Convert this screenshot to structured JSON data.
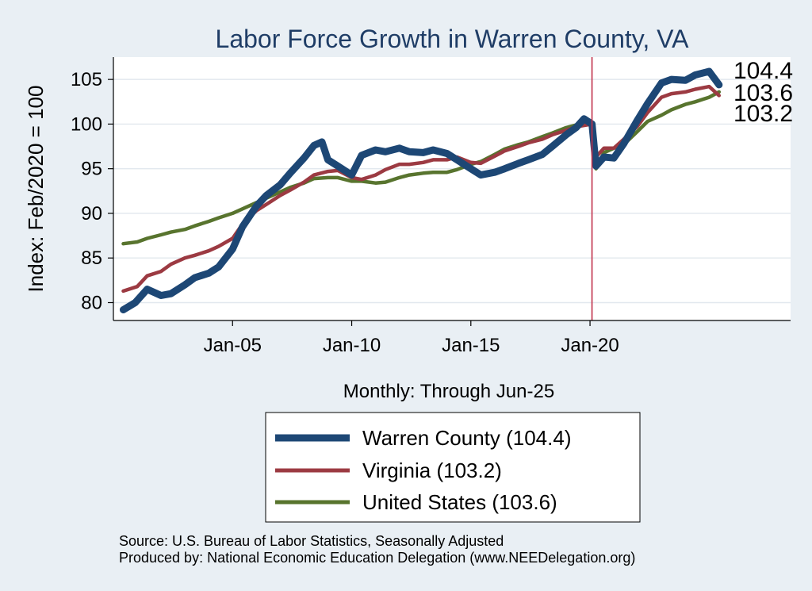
{
  "chart_data": {
    "type": "line",
    "title": "Labor Force Growth in Warren  County, VA",
    "ylabel": "Index: Feb/2020 = 100",
    "xlabel": "Monthly: Through Jun-25",
    "ylim": [
      78,
      107.5
    ],
    "xlim": [
      "2000-01",
      "2028-06"
    ],
    "y_ticks": [
      80,
      85,
      90,
      95,
      100,
      105
    ],
    "x_ticks": [
      {
        "date": "2005-01",
        "label": "Jan-05"
      },
      {
        "date": "2010-01",
        "label": "Jan-10"
      },
      {
        "date": "2015-01",
        "label": "Jan-15"
      },
      {
        "date": "2020-01",
        "label": "Jan-20"
      }
    ],
    "grid": "horizontal",
    "reference_line": {
      "date": "2020-02",
      "color": "#c0304a"
    },
    "background": "#ffffff",
    "series": [
      {
        "name": "Warren  County",
        "color": "#1d4775",
        "points": [
          [
            "2000-06",
            79.2
          ],
          [
            "2000-12",
            80.0
          ],
          [
            "2001-06",
            81.5
          ],
          [
            "2002-01",
            80.8
          ],
          [
            "2002-06",
            81.0
          ],
          [
            "2003-01",
            82.0
          ],
          [
            "2003-06",
            82.8
          ],
          [
            "2004-01",
            83.3
          ],
          [
            "2004-06",
            84.0
          ],
          [
            "2005-01",
            86.0
          ],
          [
            "2005-06",
            88.5
          ],
          [
            "2006-01",
            90.8
          ],
          [
            "2006-06",
            92.0
          ],
          [
            "2007-01",
            93.2
          ],
          [
            "2007-06",
            94.5
          ],
          [
            "2008-01",
            96.2
          ],
          [
            "2008-06",
            97.6
          ],
          [
            "2008-10",
            98.0
          ],
          [
            "2009-01",
            96.0
          ],
          [
            "2009-06",
            95.3
          ],
          [
            "2010-01",
            94.3
          ],
          [
            "2010-06",
            96.5
          ],
          [
            "2011-01",
            97.1
          ],
          [
            "2011-06",
            96.9
          ],
          [
            "2012-01",
            97.3
          ],
          [
            "2012-06",
            96.9
          ],
          [
            "2013-01",
            96.8
          ],
          [
            "2013-06",
            97.1
          ],
          [
            "2014-01",
            96.7
          ],
          [
            "2014-06",
            96.0
          ],
          [
            "2015-01",
            95.0
          ],
          [
            "2015-06",
            94.3
          ],
          [
            "2016-01",
            94.6
          ],
          [
            "2016-06",
            95.0
          ],
          [
            "2017-01",
            95.6
          ],
          [
            "2017-06",
            96.0
          ],
          [
            "2018-01",
            96.6
          ],
          [
            "2018-06",
            97.5
          ],
          [
            "2019-01",
            98.8
          ],
          [
            "2019-06",
            99.6
          ],
          [
            "2019-10",
            100.6
          ],
          [
            "2020-02",
            100.0
          ],
          [
            "2020-04",
            95.3
          ],
          [
            "2020-08",
            96.3
          ],
          [
            "2021-01",
            96.2
          ],
          [
            "2021-06",
            97.8
          ],
          [
            "2022-01",
            100.5
          ],
          [
            "2022-06",
            102.3
          ],
          [
            "2023-01",
            104.6
          ],
          [
            "2023-06",
            105.0
          ],
          [
            "2024-01",
            104.9
          ],
          [
            "2024-06",
            105.5
          ],
          [
            "2025-01",
            105.9
          ],
          [
            "2025-06",
            104.4
          ]
        ]
      },
      {
        "name": "Virginia",
        "color": "#9c3a42",
        "points": [
          [
            "2000-06",
            81.3
          ],
          [
            "2001-01",
            81.8
          ],
          [
            "2001-06",
            83.0
          ],
          [
            "2002-01",
            83.5
          ],
          [
            "2002-06",
            84.3
          ],
          [
            "2003-01",
            85.0
          ],
          [
            "2003-06",
            85.3
          ],
          [
            "2004-01",
            85.8
          ],
          [
            "2004-06",
            86.3
          ],
          [
            "2005-01",
            87.2
          ],
          [
            "2005-06",
            88.8
          ],
          [
            "2006-01",
            90.3
          ],
          [
            "2006-06",
            91.0
          ],
          [
            "2007-01",
            92.0
          ],
          [
            "2007-06",
            92.6
          ],
          [
            "2008-01",
            93.5
          ],
          [
            "2008-06",
            94.3
          ],
          [
            "2009-01",
            94.7
          ],
          [
            "2009-06",
            94.8
          ],
          [
            "2010-01",
            94.0
          ],
          [
            "2010-06",
            93.8
          ],
          [
            "2011-01",
            94.3
          ],
          [
            "2011-06",
            94.9
          ],
          [
            "2012-01",
            95.5
          ],
          [
            "2012-06",
            95.5
          ],
          [
            "2013-01",
            95.7
          ],
          [
            "2013-06",
            96.0
          ],
          [
            "2014-01",
            96.0
          ],
          [
            "2014-06",
            96.3
          ],
          [
            "2015-01",
            95.7
          ],
          [
            "2015-06",
            95.6
          ],
          [
            "2016-01",
            96.4
          ],
          [
            "2016-06",
            97.0
          ],
          [
            "2017-01",
            97.5
          ],
          [
            "2017-06",
            97.9
          ],
          [
            "2018-01",
            98.3
          ],
          [
            "2018-06",
            98.8
          ],
          [
            "2019-01",
            99.3
          ],
          [
            "2019-06",
            99.7
          ],
          [
            "2020-02",
            100.0
          ],
          [
            "2020-04",
            96.3
          ],
          [
            "2020-08",
            97.3
          ],
          [
            "2021-01",
            97.3
          ],
          [
            "2021-06",
            98.3
          ],
          [
            "2022-01",
            99.8
          ],
          [
            "2022-06",
            101.3
          ],
          [
            "2023-01",
            103.0
          ],
          [
            "2023-06",
            103.4
          ],
          [
            "2024-01",
            103.6
          ],
          [
            "2024-06",
            103.9
          ],
          [
            "2025-01",
            104.2
          ],
          [
            "2025-06",
            103.2
          ]
        ]
      },
      {
        "name": "United States",
        "color": "#58742e",
        "points": [
          [
            "2000-06",
            86.6
          ],
          [
            "2001-01",
            86.8
          ],
          [
            "2001-06",
            87.2
          ],
          [
            "2002-01",
            87.6
          ],
          [
            "2002-06",
            87.9
          ],
          [
            "2003-01",
            88.2
          ],
          [
            "2003-06",
            88.6
          ],
          [
            "2004-01",
            89.1
          ],
          [
            "2004-06",
            89.5
          ],
          [
            "2005-01",
            90.0
          ],
          [
            "2005-06",
            90.5
          ],
          [
            "2006-01",
            91.2
          ],
          [
            "2006-06",
            91.7
          ],
          [
            "2007-01",
            92.4
          ],
          [
            "2007-06",
            92.9
          ],
          [
            "2008-01",
            93.4
          ],
          [
            "2008-06",
            93.9
          ],
          [
            "2009-01",
            94.0
          ],
          [
            "2009-06",
            94.0
          ],
          [
            "2010-01",
            93.6
          ],
          [
            "2010-06",
            93.6
          ],
          [
            "2011-01",
            93.4
          ],
          [
            "2011-06",
            93.5
          ],
          [
            "2012-01",
            94.0
          ],
          [
            "2012-06",
            94.3
          ],
          [
            "2013-01",
            94.5
          ],
          [
            "2013-06",
            94.6
          ],
          [
            "2014-01",
            94.6
          ],
          [
            "2014-06",
            94.9
          ],
          [
            "2015-01",
            95.5
          ],
          [
            "2015-06",
            95.8
          ],
          [
            "2016-01",
            96.6
          ],
          [
            "2016-06",
            97.2
          ],
          [
            "2017-01",
            97.7
          ],
          [
            "2017-06",
            98.0
          ],
          [
            "2018-01",
            98.6
          ],
          [
            "2018-06",
            99.0
          ],
          [
            "2019-01",
            99.6
          ],
          [
            "2019-06",
            99.9
          ],
          [
            "2020-02",
            100.0
          ],
          [
            "2020-04",
            95.0
          ],
          [
            "2020-08",
            96.8
          ],
          [
            "2021-01",
            97.3
          ],
          [
            "2021-06",
            97.7
          ],
          [
            "2022-01",
            99.2
          ],
          [
            "2022-06",
            100.3
          ],
          [
            "2023-01",
            101.0
          ],
          [
            "2023-06",
            101.6
          ],
          [
            "2024-01",
            102.2
          ],
          [
            "2024-06",
            102.5
          ],
          [
            "2025-01",
            103.0
          ],
          [
            "2025-06",
            103.6
          ]
        ]
      }
    ],
    "end_labels": [
      "104.4",
      "103.6",
      "103.2"
    ],
    "legend": {
      "position": "bottom",
      "items": [
        {
          "label": "Warren  County (104.4)",
          "color": "#1d4775"
        },
        {
          "label": "Virginia (103.2)",
          "color": "#9c3a42"
        },
        {
          "label": "United States (103.6)",
          "color": "#58742e"
        }
      ]
    },
    "notes": [
      "Source: U.S. Bureau of Labor Statistics, Seasonally Adjusted",
      "Produced by: National Economic Education Delegation (www.NEEDelegation.org)"
    ]
  }
}
